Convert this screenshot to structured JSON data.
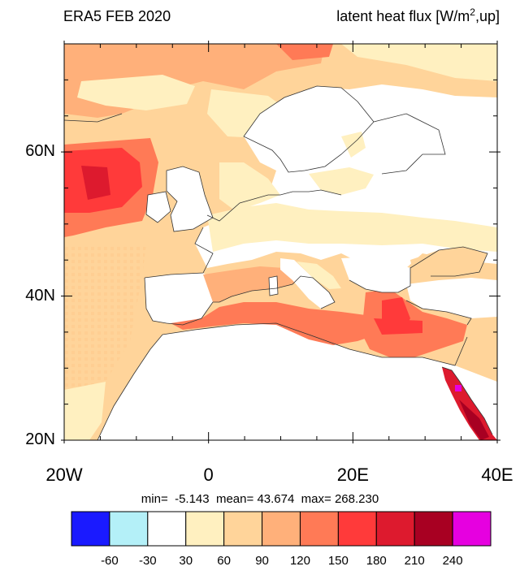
{
  "header": {
    "left_title": "ERA5 FEB 2020",
    "right_title_prefix": "latent heat flux [W/m",
    "right_title_sup": "2",
    "right_title_suffix": ",up]"
  },
  "map": {
    "lon_range": [
      -20,
      40
    ],
    "lat_range": [
      20,
      75
    ],
    "lat_labels": [
      {
        "value": 60,
        "text": "60N"
      },
      {
        "value": 40,
        "text": "40N"
      },
      {
        "value": 20,
        "text": "20N"
      }
    ],
    "lon_labels": [
      {
        "value": -20,
        "text": "20W"
      },
      {
        "value": 0,
        "text": "0"
      },
      {
        "value": 20,
        "text": "20E"
      },
      {
        "value": 40,
        "text": "40E"
      }
    ]
  },
  "stats": {
    "min_label": "min=",
    "min_value": "-5.143",
    "mean_label": "mean=",
    "mean_value": "43.674",
    "max_label": "max=",
    "max_value": "268.230"
  },
  "colorbar": {
    "colors": [
      "#1a1aff",
      "#b4f0f8",
      "#ffffff",
      "#fff0c0",
      "#ffd49a",
      "#ffb07a",
      "#ff7a56",
      "#ff3a3a",
      "#dd1a2e",
      "#a80022",
      "#e600e0"
    ],
    "labels": [
      "-60",
      "-30",
      "30",
      "60",
      "90",
      "120",
      "150",
      "180",
      "210",
      "240"
    ]
  }
}
